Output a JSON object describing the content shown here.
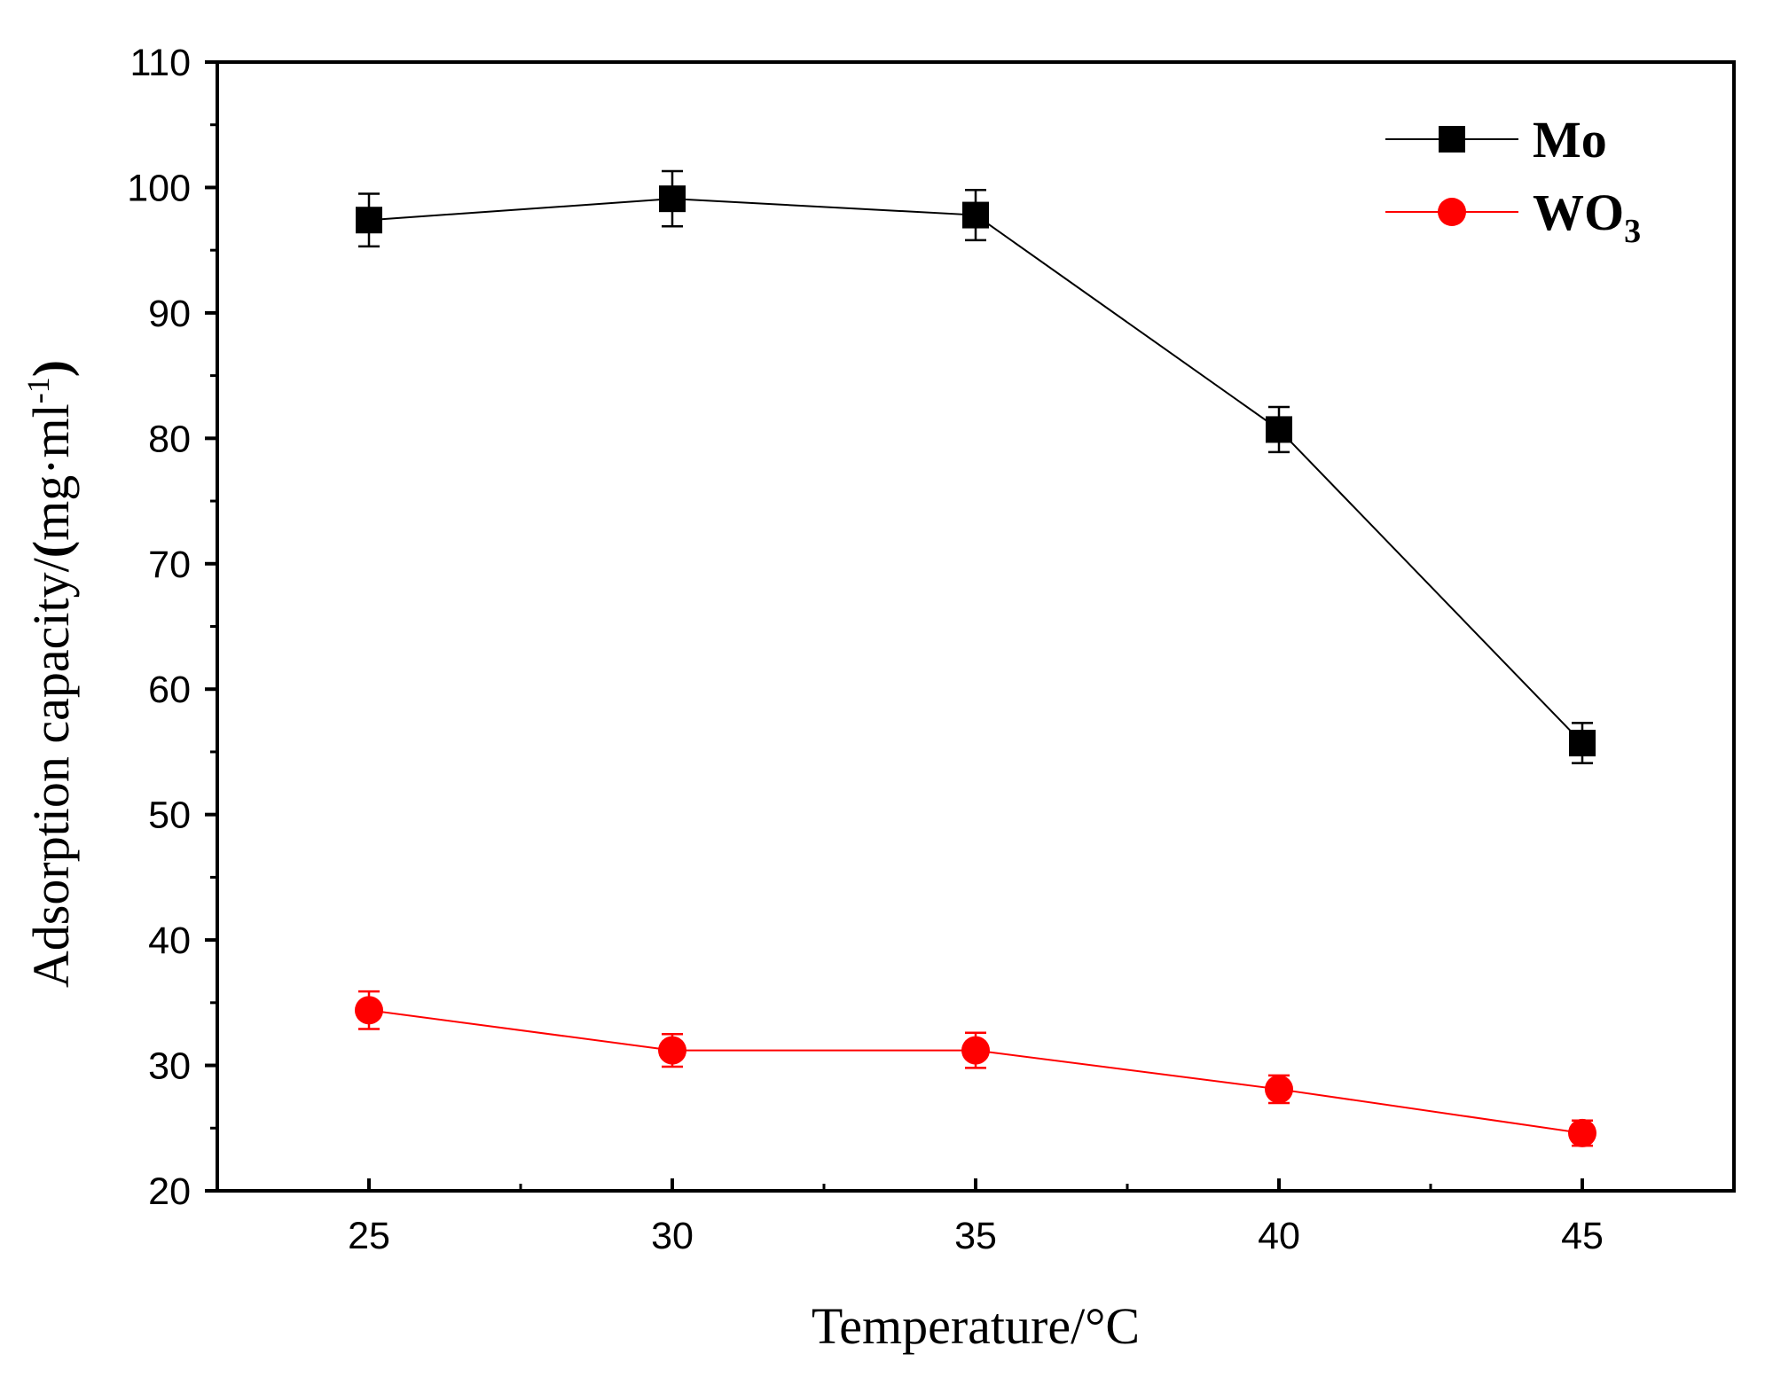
{
  "chart_data": {
    "type": "line",
    "title": "",
    "xlabel": "Temperature/°C",
    "ylabel": {
      "prefix": "Adsorption capacity/",
      "paren_open": "(",
      "unit": "mg·ml",
      "exponent": "-1",
      "paren_close": ")"
    },
    "x": [
      25,
      30,
      35,
      40,
      45
    ],
    "xlim": [
      22.5,
      47.5
    ],
    "ylim": [
      20,
      110
    ],
    "xticks": [
      "25",
      "30",
      "35",
      "40",
      "45"
    ],
    "yticks": [
      "20",
      "30",
      "40",
      "50",
      "60",
      "70",
      "80",
      "90",
      "100",
      "110"
    ],
    "grid": false,
    "legend_position": "top-right",
    "series": [
      {
        "name": "Mo",
        "name_base": "Mo",
        "name_sub": "",
        "color": "#000000",
        "marker": "square",
        "values": [
          97.4,
          99.1,
          97.8,
          80.7,
          55.7
        ],
        "errors": [
          2.1,
          2.2,
          2.0,
          1.8,
          1.6
        ]
      },
      {
        "name": "WO3",
        "name_base": "WO",
        "name_sub": "3",
        "color": "#ff0000",
        "marker": "circle",
        "values": [
          34.4,
          31.2,
          31.2,
          28.1,
          24.6
        ],
        "errors": [
          1.5,
          1.3,
          1.4,
          1.1,
          1.0
        ]
      }
    ]
  }
}
